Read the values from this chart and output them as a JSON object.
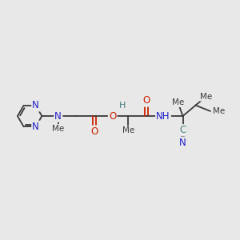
{
  "bg_color": "#e8e8e8",
  "bond_color": "#3a3a3a",
  "n_color": "#2020cc",
  "o_color": "#cc2000",
  "c_color": "#4a8080",
  "text_color": "#3a3a3a",
  "figsize": [
    3.0,
    3.0
  ],
  "dpi": 100,
  "xlim": [
    0,
    12
  ],
  "ylim": [
    0,
    10
  ]
}
